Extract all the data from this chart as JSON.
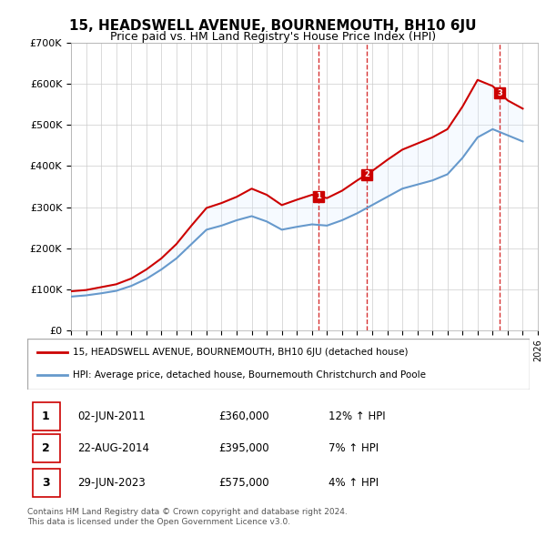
{
  "title": "15, HEADSWELL AVENUE, BOURNEMOUTH, BH10 6JU",
  "subtitle": "Price paid vs. HM Land Registry's House Price Index (HPI)",
  "legend_line1": "15, HEADSWELL AVENUE, BOURNEMOUTH, BH10 6JU (detached house)",
  "legend_line2": "HPI: Average price, detached house, Bournemouth Christchurch and Poole",
  "footnote1": "Contains HM Land Registry data © Crown copyright and database right 2024.",
  "footnote2": "This data is licensed under the Open Government Licence v3.0.",
  "transactions": [
    {
      "num": "1",
      "date": "02-JUN-2011",
      "price": "£360,000",
      "hpi": "12% ↑ HPI",
      "year": 2011.42
    },
    {
      "num": "2",
      "date": "22-AUG-2014",
      "price": "£395,000",
      "hpi": "7% ↑ HPI",
      "year": 2014.64
    },
    {
      "num": "3",
      "date": "29-JUN-2023",
      "price": "£575,000",
      "hpi": "4% ↑ HPI",
      "year": 2023.49
    }
  ],
  "red_line_color": "#cc0000",
  "blue_line_color": "#6699cc",
  "shade_color": "#ddeeff",
  "dashed_color": "#cc0000",
  "grid_color": "#cccccc",
  "background_color": "#ffffff",
  "xmin": 1995,
  "xmax": 2026,
  "ymin": 0,
  "ymax": 700000,
  "hpi_data": {
    "years": [
      1995,
      1996,
      1997,
      1998,
      1999,
      2000,
      2001,
      2002,
      2003,
      2004,
      2005,
      2006,
      2007,
      2008,
      2009,
      2010,
      2011,
      2012,
      2013,
      2014,
      2015,
      2016,
      2017,
      2018,
      2019,
      2020,
      2021,
      2022,
      2023,
      2024,
      2025
    ],
    "values": [
      82000,
      85000,
      90000,
      96000,
      108000,
      125000,
      148000,
      175000,
      210000,
      245000,
      255000,
      268000,
      278000,
      265000,
      245000,
      252000,
      258000,
      255000,
      268000,
      285000,
      305000,
      325000,
      345000,
      355000,
      365000,
      380000,
      420000,
      470000,
      490000,
      475000,
      460000
    ]
  },
  "red_data": {
    "years": [
      1995,
      1996,
      1997,
      1998,
      1999,
      2000,
      2001,
      2002,
      2003,
      2004,
      2005,
      2006,
      2007,
      2008,
      2009,
      2010,
      2011,
      2012,
      2013,
      2014,
      2015,
      2016,
      2017,
      2018,
      2019,
      2020,
      2021,
      2022,
      2023,
      2024,
      2025
    ],
    "values": [
      95000,
      98000,
      105000,
      112000,
      126000,
      148000,
      175000,
      210000,
      255000,
      298000,
      310000,
      325000,
      345000,
      330000,
      305000,
      318000,
      330000,
      322000,
      340000,
      365000,
      388000,
      415000,
      440000,
      455000,
      470000,
      490000,
      545000,
      610000,
      595000,
      560000,
      540000
    ]
  }
}
